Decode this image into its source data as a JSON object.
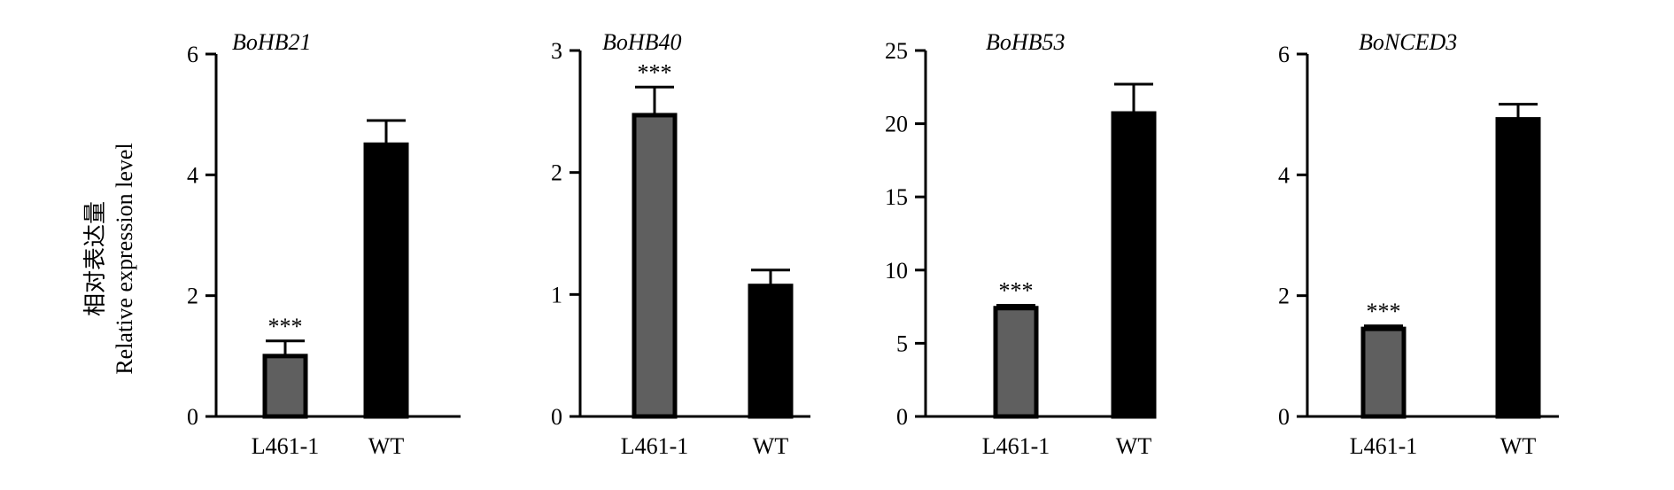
{
  "figure": {
    "ylabel_cn": "相对表达量",
    "ylabel_en": "Relative expression level"
  },
  "chart_data": [
    {
      "type": "bar",
      "title": "BoHB21",
      "categories": [
        "L461-1",
        "WT"
      ],
      "values": [
        1.0,
        4.5
      ],
      "errors": [
        0.25,
        0.4
      ],
      "significance": [
        "***",
        ""
      ],
      "ylim": [
        0,
        6
      ],
      "yticks": [
        0,
        2,
        4,
        6
      ],
      "bar_colors": [
        "#5f5f5f",
        "#000000"
      ],
      "grid": false
    },
    {
      "type": "bar",
      "title": "BoHB40",
      "categories": [
        "L461-1",
        "WT"
      ],
      "values": [
        2.47,
        1.07
      ],
      "errors": [
        0.23,
        0.13
      ],
      "significance": [
        "***",
        ""
      ],
      "ylim": [
        0,
        3
      ],
      "yticks": [
        0,
        1,
        2,
        3
      ],
      "bar_colors": [
        "#5f5f5f",
        "#000000"
      ],
      "grid": false
    },
    {
      "type": "bar",
      "title": "BoHB53",
      "categories": [
        "L461-1",
        "WT"
      ],
      "values": [
        7.4,
        20.7
      ],
      "errors": [
        0.2,
        2.0
      ],
      "significance": [
        "***",
        ""
      ],
      "ylim": [
        0,
        25
      ],
      "yticks": [
        0,
        5,
        10,
        15,
        20,
        25
      ],
      "bar_colors": [
        "#5f5f5f",
        "#000000"
      ],
      "grid": false
    },
    {
      "type": "bar",
      "title": "BoNCED3",
      "categories": [
        "L461-1",
        "WT"
      ],
      "values": [
        1.45,
        4.92
      ],
      "errors": [
        0.05,
        0.25
      ],
      "significance": [
        "***",
        ""
      ],
      "ylim": [
        0,
        6
      ],
      "yticks": [
        0,
        2,
        4,
        6
      ],
      "bar_colors": [
        "#5f5f5f",
        "#000000"
      ],
      "grid": false
    }
  ]
}
